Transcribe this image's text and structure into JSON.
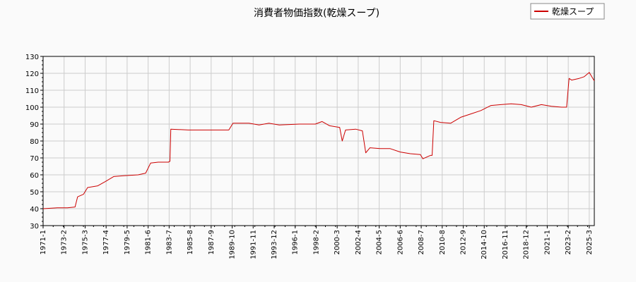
{
  "chart_data": {
    "type": "line",
    "title": "消費者物価指数(乾燥スープ)",
    "xlabel": "",
    "ylabel": "",
    "ylim": [
      30,
      130
    ],
    "yticks": [
      30,
      40,
      50,
      60,
      70,
      80,
      90,
      100,
      110,
      120,
      130
    ],
    "xticks": [
      "1971-1",
      "1973-2",
      "1975-3",
      "1977-4",
      "1979-5",
      "1981-6",
      "1983-7",
      "1985-8",
      "1987-9",
      "1989-10",
      "1991-11",
      "1993-12",
      "1996-1",
      "1998-2",
      "2000-3",
      "2002-4",
      "2004-5",
      "2006-6",
      "2008-7",
      "2010-8",
      "2012-9",
      "2014-10",
      "2016-11",
      "2018-12",
      "2021-1",
      "2023-2",
      "2025-3"
    ],
    "grid": true,
    "legend_position": "top-right",
    "colors": {
      "series": "#cc0000",
      "grid": "#cccccc",
      "axis": "#000000"
    },
    "series": [
      {
        "name": "乾燥スープ",
        "points": [
          [
            "1971-01",
            40.0
          ],
          [
            "1972-06",
            40.5
          ],
          [
            "1973-06",
            40.5
          ],
          [
            "1974-03",
            41.0
          ],
          [
            "1974-06",
            47.0
          ],
          [
            "1975-01",
            48.5
          ],
          [
            "1975-06",
            52.5
          ],
          [
            "1976-06",
            53.5
          ],
          [
            "1977-03",
            56.0
          ],
          [
            "1978-01",
            59.0
          ],
          [
            "1979-01",
            59.5
          ],
          [
            "1980-06",
            60.0
          ],
          [
            "1981-03",
            61.0
          ],
          [
            "1981-09",
            67.0
          ],
          [
            "1982-06",
            67.5
          ],
          [
            "1983-06",
            67.5
          ],
          [
            "1983-08",
            68.0
          ],
          [
            "1983-09",
            87.0
          ],
          [
            "1985-06",
            86.5
          ],
          [
            "1987-06",
            86.5
          ],
          [
            "1989-06",
            86.5
          ],
          [
            "1989-11",
            90.5
          ],
          [
            "1991-06",
            90.5
          ],
          [
            "1992-06",
            89.5
          ],
          [
            "1993-06",
            90.5
          ],
          [
            "1994-06",
            89.5
          ],
          [
            "1996-06",
            90.0
          ],
          [
            "1998-01",
            90.0
          ],
          [
            "1998-09",
            91.5
          ],
          [
            "1999-06",
            89.0
          ],
          [
            "2000-06",
            88.0
          ],
          [
            "2000-09",
            80.0
          ],
          [
            "2001-01",
            86.5
          ],
          [
            "2002-01",
            87.0
          ],
          [
            "2002-09",
            86.0
          ],
          [
            "2003-01",
            73.0
          ],
          [
            "2003-06",
            76.0
          ],
          [
            "2004-06",
            75.5
          ],
          [
            "2005-06",
            75.5
          ],
          [
            "2006-06",
            73.5
          ],
          [
            "2007-06",
            72.5
          ],
          [
            "2008-06",
            72.0
          ],
          [
            "2008-09",
            69.5
          ],
          [
            "2009-06",
            71.5
          ],
          [
            "2009-08",
            71.5
          ],
          [
            "2009-10",
            92.0
          ],
          [
            "2010-06",
            91.0
          ],
          [
            "2011-06",
            90.5
          ],
          [
            "2012-06",
            94.0
          ],
          [
            "2013-06",
            96.0
          ],
          [
            "2014-06",
            98.0
          ],
          [
            "2015-06",
            101.0
          ],
          [
            "2016-06",
            101.5
          ],
          [
            "2017-06",
            102.0
          ],
          [
            "2018-06",
            101.5
          ],
          [
            "2019-06",
            100.0
          ],
          [
            "2020-06",
            101.5
          ],
          [
            "2021-06",
            100.5
          ],
          [
            "2022-06",
            100.0
          ],
          [
            "2022-12",
            100.0
          ],
          [
            "2023-03",
            117.0
          ],
          [
            "2023-06",
            116.0
          ],
          [
            "2024-03",
            117.0
          ],
          [
            "2024-09",
            118.0
          ],
          [
            "2025-03",
            120.5
          ],
          [
            "2025-06",
            118.0
          ],
          [
            "2025-09",
            115.5
          ]
        ]
      }
    ]
  }
}
